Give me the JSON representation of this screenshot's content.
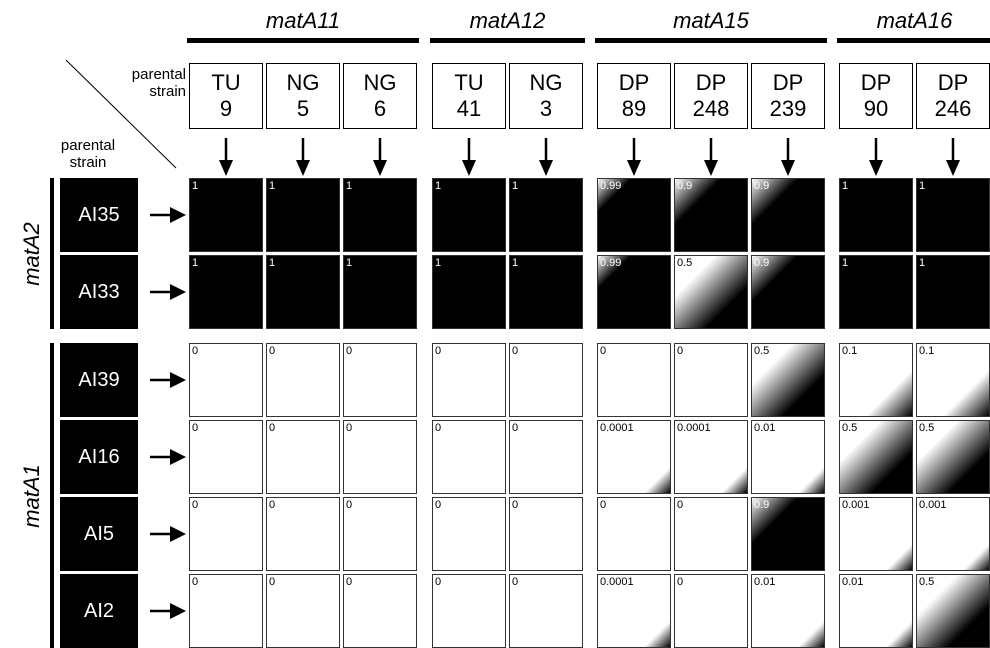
{
  "column_groups": [
    {
      "title": "matA11",
      "columns": [
        {
          "line1": "TU",
          "line2": "9"
        },
        {
          "line1": "NG",
          "line2": "5"
        },
        {
          "line1": "NG",
          "line2": "6"
        }
      ]
    },
    {
      "title": "matA12",
      "columns": [
        {
          "line1": "TU",
          "line2": "41"
        },
        {
          "line1": "NG",
          "line2": "3"
        }
      ]
    },
    {
      "title": "matA15",
      "columns": [
        {
          "line1": "DP",
          "line2": "89"
        },
        {
          "line1": "DP",
          "line2": "248"
        },
        {
          "line1": "DP",
          "line2": "239"
        }
      ]
    },
    {
      "title": "matA16",
      "columns": [
        {
          "line1": "DP",
          "line2": "90"
        },
        {
          "line1": "DP",
          "line2": "246"
        }
      ]
    }
  ],
  "header_label_top": "parental strain",
  "header_label_left": "parental strain",
  "row_groups": [
    {
      "title": "matA2",
      "rows": [
        "AI35",
        "AI33"
      ]
    },
    {
      "title": "matA1",
      "rows": [
        "AI39",
        "AI16",
        "AI5",
        "AI2"
      ]
    }
  ],
  "grid": [
    [
      "1",
      "1",
      "1",
      "1",
      "1",
      "0.99",
      "0.9",
      "0.9",
      "1",
      "1"
    ],
    [
      "1",
      "1",
      "1",
      "1",
      "1",
      "0.99",
      "0.5",
      "0.9",
      "1",
      "1"
    ],
    [
      "0",
      "0",
      "0",
      "0",
      "0",
      "0",
      "0",
      "0.5",
      "0.1",
      "0.1"
    ],
    [
      "0",
      "0",
      "0",
      "0",
      "0",
      "0.0001",
      "0.0001",
      "0.01",
      "0.5",
      "0.5"
    ],
    [
      "0",
      "0",
      "0",
      "0",
      "0",
      "0",
      "0",
      "0.9",
      "0.001",
      "0.001"
    ],
    [
      "0",
      "0",
      "0",
      "0",
      "0",
      "0.0001",
      "0",
      "0.01",
      "0.01",
      "0.5"
    ]
  ],
  "colors": {
    "filled": "#000000",
    "empty": "#ffffff"
  }
}
